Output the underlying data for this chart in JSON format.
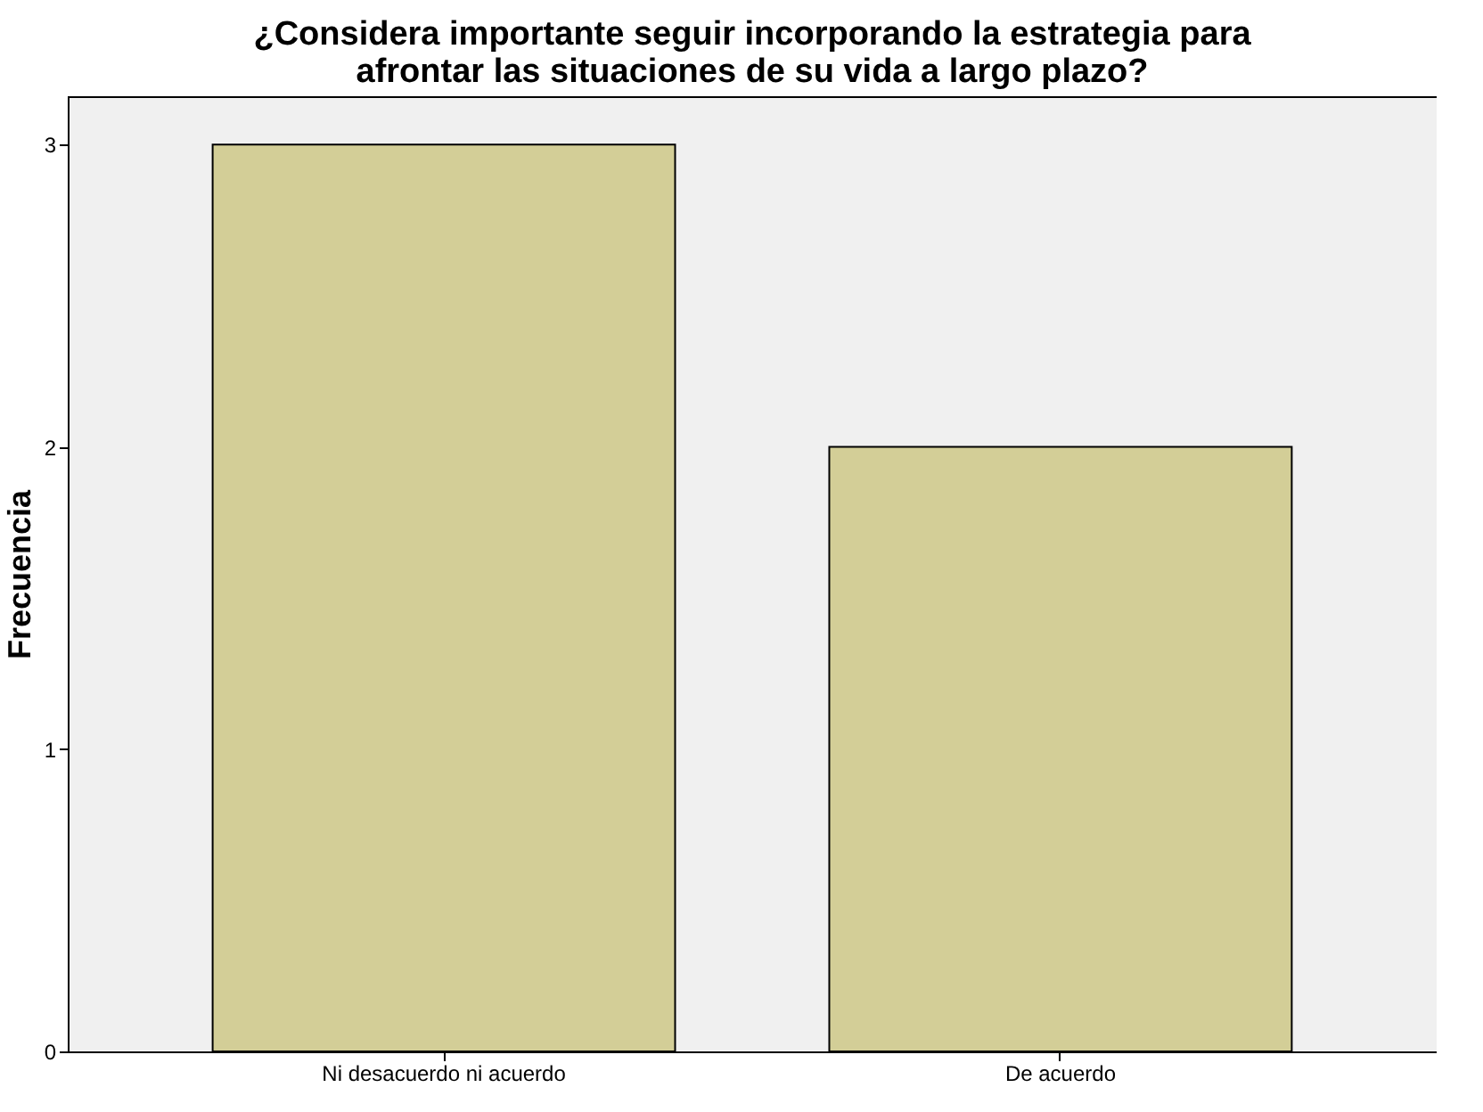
{
  "chart_data": {
    "type": "bar",
    "title": "¿Considera importante seguir incorporando la estrategia para afrontar las situaciones de su vida a largo plazo?",
    "ylabel": "Frecuencia",
    "categories": [
      "Ni desacuerdo ni acuerdo",
      "De acuerdo"
    ],
    "values": [
      3,
      2
    ],
    "color": "#d3ce97",
    "ylim": [
      0,
      3.16
    ],
    "yticks": [
      0,
      1,
      2,
      3
    ],
    "grid": false
  }
}
